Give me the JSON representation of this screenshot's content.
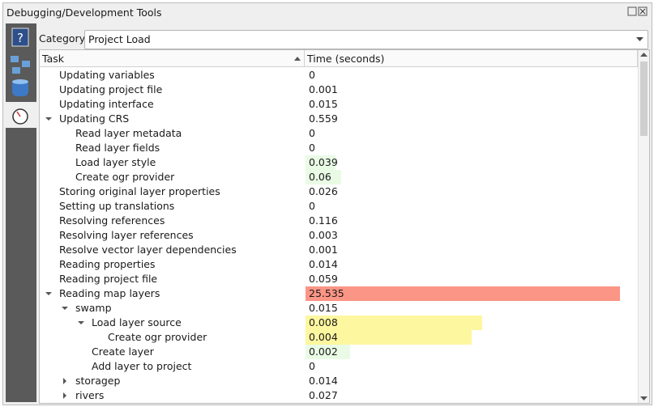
{
  "window": {
    "title": "Debugging/Development Tools"
  },
  "filter": {
    "label": "Category",
    "value": "Project Load"
  },
  "table": {
    "headers": [
      "Task",
      "Time (seconds)"
    ],
    "rows": [
      {
        "task": "Updating variables",
        "time": 0
      },
      {
        "task": "Updating project file",
        "time": 0.001
      },
      {
        "task": "Updating interface",
        "time": 0.015
      },
      {
        "task": "Updating CRS",
        "time": 0.559
      },
      {
        "task": "Read layer metadata",
        "time": 0
      },
      {
        "task": "Read layer fields",
        "time": 0
      },
      {
        "task": "Load layer style",
        "time": 0.039
      },
      {
        "task": "Create ogr provider",
        "time": 0.06
      },
      {
        "task": "Storing original layer properties",
        "time": 0.026
      },
      {
        "task": "Setting up translations",
        "time": 0
      },
      {
        "task": "Resolving references",
        "time": 0.116
      },
      {
        "task": "Resolving layer references",
        "time": 0.003
      },
      {
        "task": "Resolve vector layer dependencies",
        "time": 0.001
      },
      {
        "task": "Reading properties",
        "time": 0.014
      },
      {
        "task": "Reading project file",
        "time": 0.059
      },
      {
        "task": "Reading map layers",
        "time": 25.535
      },
      {
        "task": "swamp",
        "time": 0.015
      },
      {
        "task": "Load layer source",
        "time": 0.008
      },
      {
        "task": "Create ogr provider",
        "time": 0.004
      },
      {
        "task": "Create layer",
        "time": 0.002
      },
      {
        "task": "Add layer to project",
        "time": 0
      },
      {
        "task": "storagep",
        "time": 0.014
      },
      {
        "task": "rivers",
        "time": 0.027
      }
    ]
  }
}
